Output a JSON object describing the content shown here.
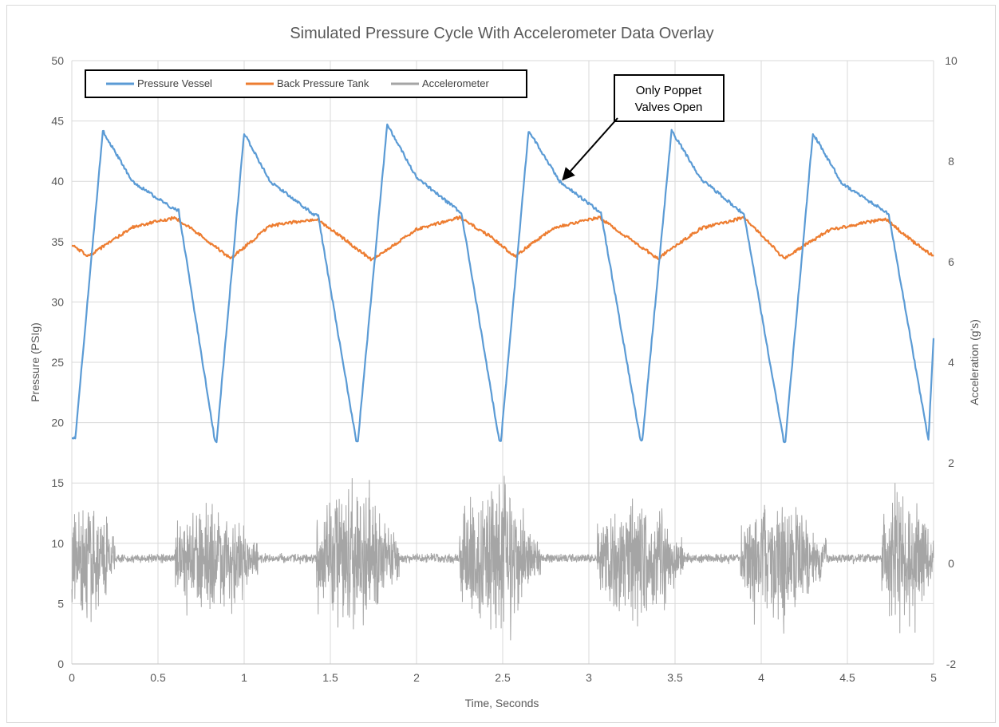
{
  "chart_data": {
    "type": "line",
    "title": "Simulated Pressure Cycle  With Accelerometer Data Overlay",
    "xlabel": "Time, Seconds",
    "ylabel": "Pressure (PSIg)",
    "y2label": "Acceleration (g's)",
    "xlim": [
      0,
      5
    ],
    "ylim": [
      0,
      50
    ],
    "y2lim": [
      -2,
      10
    ],
    "x_ticks": [
      "0",
      "0.5",
      "1",
      "1.5",
      "2",
      "2.5",
      "3",
      "3.5",
      "4",
      "4.5",
      "5"
    ],
    "y_ticks": [
      "0",
      "5",
      "10",
      "15",
      "20",
      "25",
      "30",
      "35",
      "40",
      "45",
      "50"
    ],
    "y2_ticks": [
      "-2",
      "0",
      "2",
      "4",
      "6",
      "8",
      "10"
    ],
    "grid": true,
    "legend_position": "top-left",
    "series": [
      {
        "name": "Pressure Vessel",
        "axis": "left",
        "color": "#5b9bd5",
        "x": [
          0,
          0.02,
          0.18,
          0.35,
          0.58,
          0.62,
          0.83,
          0.84,
          1.0,
          1.15,
          1.4,
          1.43,
          1.65,
          1.66,
          1.83,
          2.0,
          2.24,
          2.26,
          2.48,
          2.49,
          2.65,
          2.83,
          3.05,
          3.07,
          3.3,
          3.31,
          3.48,
          3.65,
          3.88,
          3.9,
          4.13,
          4.14,
          4.3,
          4.47,
          4.72,
          4.74,
          4.97,
          5.0
        ],
        "y": [
          18.7,
          18.7,
          44.2,
          40.0,
          37.8,
          37.6,
          18.5,
          18.5,
          44.0,
          40.0,
          37.3,
          37.1,
          18.5,
          18.5,
          44.7,
          40.3,
          37.6,
          37.4,
          18.5,
          18.5,
          44.2,
          40.0,
          37.6,
          37.4,
          18.5,
          18.5,
          44.2,
          40.2,
          37.5,
          37.3,
          18.5,
          18.5,
          44.0,
          39.8,
          37.5,
          37.3,
          18.5,
          27.0
        ]
      },
      {
        "name": "Back Pressure Tank",
        "axis": "left",
        "color": "#ed7d31",
        "x": [
          0,
          0.1,
          0.35,
          0.6,
          0.75,
          0.92,
          1.15,
          1.42,
          1.6,
          1.74,
          2.0,
          2.25,
          2.42,
          2.57,
          2.8,
          3.06,
          3.22,
          3.4,
          3.65,
          3.9,
          4.04,
          4.13,
          4.4,
          4.72,
          4.88,
          5.0
        ],
        "y": [
          34.7,
          33.8,
          36.2,
          37.0,
          35.5,
          33.6,
          36.3,
          36.9,
          35.0,
          33.5,
          36.0,
          37.0,
          35.5,
          33.8,
          36.2,
          37.0,
          35.4,
          33.6,
          36.1,
          37.0,
          35.0,
          33.6,
          36.0,
          36.9,
          35.0,
          33.8
        ]
      },
      {
        "name": "Accelerometer",
        "axis": "right",
        "color": "#a5a5a5",
        "bursts": [
          {
            "start": 0.0,
            "end": 0.25,
            "amplitude": 1.6
          },
          {
            "start": 0.6,
            "end": 1.08,
            "amplitude": 1.45
          },
          {
            "start": 1.42,
            "end": 1.9,
            "amplitude": 1.85
          },
          {
            "start": 2.25,
            "end": 2.72,
            "amplitude": 1.95
          },
          {
            "start": 3.05,
            "end": 3.55,
            "amplitude": 1.55
          },
          {
            "start": 3.88,
            "end": 4.38,
            "amplitude": 1.65
          },
          {
            "start": 4.7,
            "end": 5.0,
            "amplitude": 1.9
          }
        ],
        "baseline": 0.1,
        "quiet_amplitude": 0.12
      }
    ],
    "annotation": {
      "text_lines": [
        "Only Poppet",
        "Valves Open"
      ],
      "arrow_to": {
        "x": 2.83,
        "y": 40.0
      }
    }
  }
}
